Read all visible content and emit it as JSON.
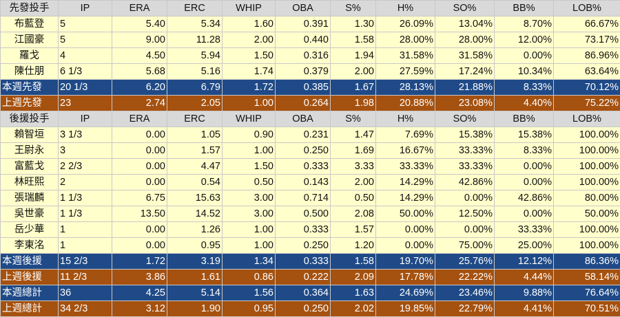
{
  "colors": {
    "header_bg": "#d9d9d9",
    "player_bg": "#ffffcc",
    "this_week_bg": "#1f4a87",
    "last_week_bg": "#a5510f",
    "summary_text": "#ffffff"
  },
  "columns": [
    "IP",
    "ERA",
    "ERC",
    "WHIP",
    "OBA",
    "S%",
    "H%",
    "SO%",
    "BB%",
    "LOB%"
  ],
  "starters": {
    "header": "先發投手",
    "rows": [
      {
        "name": "布藍登",
        "stats": [
          "5",
          "5.40",
          "5.34",
          "1.60",
          "0.391",
          "1.30",
          "26.09%",
          "13.04%",
          "8.70%",
          "66.67%"
        ]
      },
      {
        "name": "江國豪",
        "stats": [
          "5",
          "9.00",
          "11.28",
          "2.00",
          "0.440",
          "1.58",
          "28.00%",
          "28.00%",
          "12.00%",
          "73.17%"
        ]
      },
      {
        "name": "羅戈",
        "stats": [
          "4",
          "4.50",
          "5.94",
          "1.50",
          "0.316",
          "1.94",
          "31.58%",
          "31.58%",
          "0.00%",
          "86.96%"
        ]
      },
      {
        "name": "陳仕朋",
        "stats": [
          "6 1/3",
          "5.68",
          "5.16",
          "1.74",
          "0.379",
          "2.00",
          "27.59%",
          "17.24%",
          "10.34%",
          "63.64%"
        ]
      }
    ],
    "this_week": {
      "name": "本週先發",
      "stats": [
        "20 1/3",
        "6.20",
        "6.79",
        "1.72",
        "0.385",
        "1.67",
        "28.13%",
        "21.88%",
        "8.33%",
        "70.12%"
      ]
    },
    "last_week": {
      "name": "上週先發",
      "stats": [
        "23",
        "2.74",
        "2.05",
        "1.00",
        "0.264",
        "1.98",
        "20.88%",
        "23.08%",
        "4.40%",
        "75.22%"
      ]
    }
  },
  "relievers": {
    "header": "後援投手",
    "rows": [
      {
        "name": "賴智垣",
        "stats": [
          "3 1/3",
          "0.00",
          "1.05",
          "0.90",
          "0.231",
          "1.47",
          "7.69%",
          "15.38%",
          "15.38%",
          "100.00%"
        ]
      },
      {
        "name": "王尉永",
        "stats": [
          "3",
          "0.00",
          "1.57",
          "1.00",
          "0.250",
          "1.69",
          "16.67%",
          "33.33%",
          "8.33%",
          "100.00%"
        ]
      },
      {
        "name": "富藍戈",
        "stats": [
          "2 2/3",
          "0.00",
          "4.47",
          "1.50",
          "0.333",
          "3.33",
          "33.33%",
          "33.33%",
          "0.00%",
          "100.00%"
        ]
      },
      {
        "name": "林旺熙",
        "stats": [
          "2",
          "0.00",
          "0.54",
          "0.50",
          "0.143",
          "2.00",
          "14.29%",
          "42.86%",
          "0.00%",
          "100.00%"
        ]
      },
      {
        "name": "張瑞麟",
        "stats": [
          "1 1/3",
          "6.75",
          "15.63",
          "3.00",
          "0.714",
          "0.50",
          "14.29%",
          "0.00%",
          "42.86%",
          "80.00%"
        ]
      },
      {
        "name": "吳世豪",
        "stats": [
          "1 1/3",
          "13.50",
          "14.52",
          "3.00",
          "0.500",
          "2.08",
          "50.00%",
          "12.50%",
          "0.00%",
          "50.00%"
        ]
      },
      {
        "name": "岳少華",
        "stats": [
          "1",
          "0.00",
          "1.26",
          "1.00",
          "0.333",
          "1.57",
          "0.00%",
          "0.00%",
          "33.33%",
          "100.00%"
        ]
      },
      {
        "name": "李東洺",
        "stats": [
          "1",
          "0.00",
          "0.95",
          "1.00",
          "0.250",
          "1.20",
          "0.00%",
          "75.00%",
          "25.00%",
          "100.00%"
        ]
      }
    ],
    "this_week": {
      "name": "本週後援",
      "stats": [
        "15 2/3",
        "1.72",
        "3.19",
        "1.34",
        "0.333",
        "1.58",
        "19.70%",
        "25.76%",
        "12.12%",
        "86.36%"
      ]
    },
    "last_week": {
      "name": "上週後援",
      "stats": [
        "11 2/3",
        "3.86",
        "1.61",
        "0.86",
        "0.222",
        "2.09",
        "17.78%",
        "22.22%",
        "4.44%",
        "58.14%"
      ]
    }
  },
  "totals": {
    "this_week": {
      "name": "本週總計",
      "stats": [
        "36",
        "4.25",
        "5.14",
        "1.56",
        "0.364",
        "1.63",
        "24.69%",
        "23.46%",
        "9.88%",
        "76.64%"
      ]
    },
    "last_week": {
      "name": "上週總計",
      "stats": [
        "34 2/3",
        "3.12",
        "1.90",
        "0.95",
        "0.250",
        "2.02",
        "19.85%",
        "22.79%",
        "4.41%",
        "70.51%"
      ]
    }
  }
}
